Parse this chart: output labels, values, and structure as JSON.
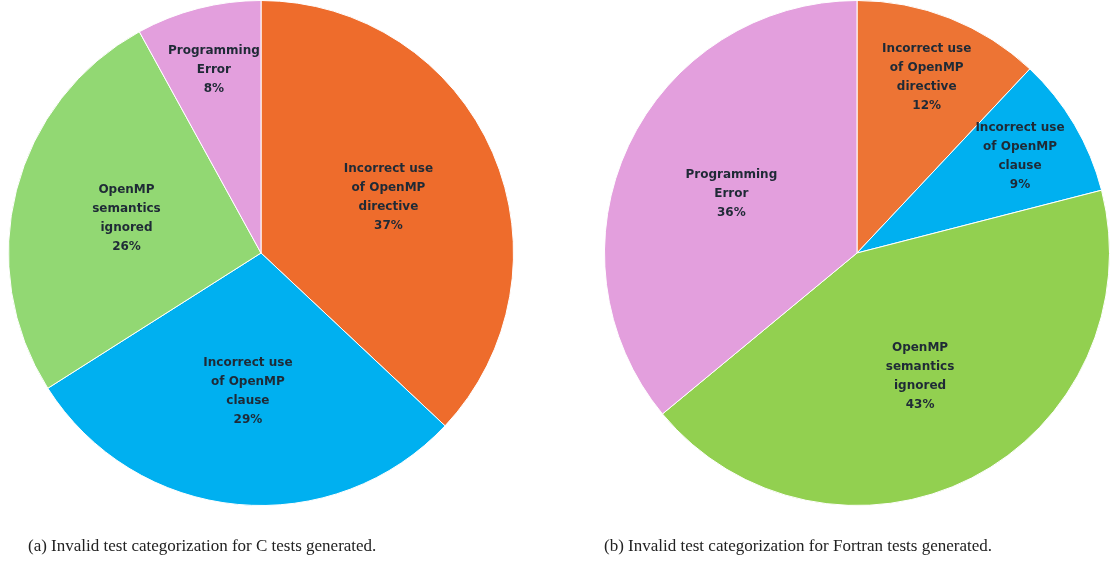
{
  "chart_data": [
    {
      "type": "pie",
      "title": "(a) Invalid test categorization for C tests generated.",
      "categories": [
        "Incorrect use of OpenMP directive",
        "Incorrect use of OpenMP clause",
        "OpenMP semantics ignored",
        "Programming Error"
      ],
      "values": [
        37,
        29,
        26,
        8
      ],
      "value_labels": [
        "37%",
        "29%",
        "26%",
        "8%"
      ],
      "colors": [
        "#ee6c2c",
        "#00b0f0",
        "#92d873",
        "#e39fdd"
      ],
      "legend": false
    },
    {
      "type": "pie",
      "title": "(b) Invalid test categorization for Fortran tests generated.",
      "categories": [
        "Incorrect use of OpenMP directive",
        "Incorrect use of OpenMP clause",
        "OpenMP semantics ignored",
        "Programming Error"
      ],
      "values": [
        12,
        9,
        43,
        36
      ],
      "value_labels": [
        "12%",
        "9%",
        "43%",
        "36%"
      ],
      "colors": [
        "#ed7434",
        "#00b0f0",
        "#92d050",
        "#e39fdd"
      ],
      "legend": false
    }
  ]
}
